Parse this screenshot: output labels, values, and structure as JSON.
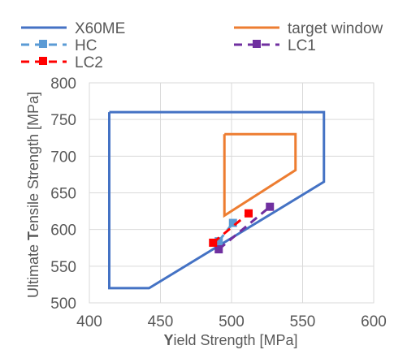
{
  "chart_data": {
    "type": "scatter",
    "xlabel_initial": "Y",
    "xlabel_rest": "ield Strength [MPa]",
    "ylabel_prefix": "Ultimate ",
    "ylabel_initial": "T",
    "ylabel_rest": "ensile Strength [MPa]",
    "xlim": [
      400,
      600
    ],
    "ylim": [
      500,
      800
    ],
    "xticks": [
      400,
      450,
      500,
      550,
      600
    ],
    "yticks": [
      500,
      550,
      600,
      650,
      700,
      750,
      800
    ],
    "grid": true,
    "legend_position": "top",
    "series": [
      {
        "name": "X60ME",
        "style": "solid-line",
        "color": "#4472C4",
        "points": [
          [
            414,
            760
          ],
          [
            565,
            760
          ],
          [
            565,
            665
          ],
          [
            442,
            520
          ],
          [
            414,
            520
          ],
          [
            414,
            760
          ]
        ]
      },
      {
        "name": "target window",
        "style": "solid-line",
        "color": "#ED7D31",
        "points": [
          [
            495,
            730
          ],
          [
            545,
            730
          ],
          [
            545,
            681
          ],
          [
            495,
            619
          ],
          [
            495,
            730
          ]
        ]
      },
      {
        "name": "HC",
        "style": "dashed-marker",
        "color": "#5B9BD5",
        "points": [
          [
            491,
            584
          ],
          [
            501,
            609
          ]
        ]
      },
      {
        "name": "LC1",
        "style": "dashed-marker",
        "color": "#7030A0",
        "points": [
          [
            491,
            573
          ],
          [
            527,
            631
          ]
        ]
      },
      {
        "name": "LC2",
        "style": "dashed-marker",
        "color": "#FF0000",
        "points": [
          [
            487,
            582
          ],
          [
            512,
            622
          ]
        ]
      }
    ]
  }
}
